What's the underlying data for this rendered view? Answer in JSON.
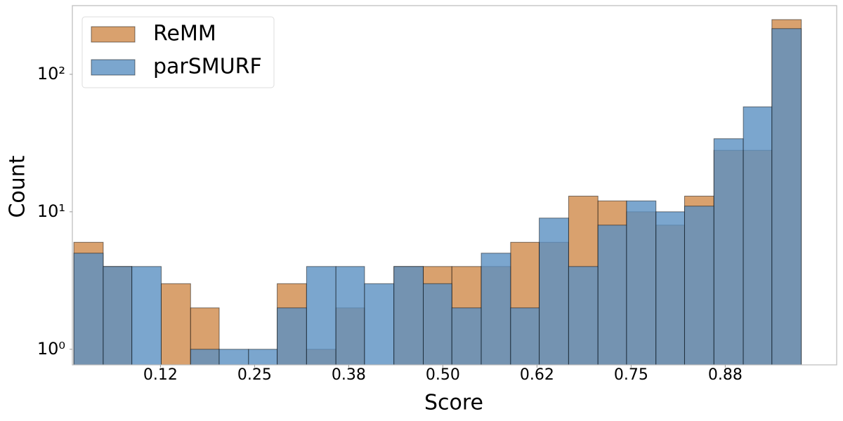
{
  "chart_data": {
    "type": "histogram",
    "x_label": "Score",
    "y_label": "Count",
    "bins": [
      0.01,
      0.049,
      0.087,
      0.126,
      0.165,
      0.203,
      0.242,
      0.28,
      0.319,
      0.358,
      0.396,
      0.435,
      0.474,
      0.512,
      0.551,
      0.59,
      0.628,
      0.667,
      0.706,
      0.744,
      0.783,
      0.821,
      0.86,
      0.899,
      0.937,
      0.976
    ],
    "series": [
      {
        "name": "ReMM",
        "color": "#d08a4a",
        "values": [
          6,
          4,
          0,
          3,
          2,
          0,
          0,
          3,
          1,
          2,
          0,
          4,
          4,
          4,
          4,
          6,
          6,
          13,
          12,
          10,
          8,
          13,
          28,
          28,
          250
        ]
      },
      {
        "name": "parSMURF",
        "color": "#5a90c2",
        "values": [
          5,
          4,
          4,
          0,
          1,
          1,
          1,
          2,
          4,
          4,
          3,
          4,
          3,
          2,
          5,
          2,
          9,
          4,
          8,
          12,
          10,
          11,
          34,
          58,
          215
        ]
      }
    ],
    "xlim": [
      0.008,
      1.023
    ],
    "xticks": [
      {
        "value": 0.125,
        "label": "0.12"
      },
      {
        "value": 0.25,
        "label": "0.25"
      },
      {
        "value": 0.375,
        "label": "0.38"
      },
      {
        "value": 0.5,
        "label": "0.50"
      },
      {
        "value": 0.625,
        "label": "0.62"
      },
      {
        "value": 0.75,
        "label": "0.75"
      },
      {
        "value": 0.875,
        "label": "0.88"
      }
    ],
    "ylim": [
      0.77,
      316
    ],
    "yticks": [
      {
        "value": 1,
        "label": "10⁰"
      },
      {
        "value": 10,
        "label": "10¹"
      },
      {
        "value": 100,
        "label": "10²"
      }
    ],
    "y_log": true,
    "legend": "upper left"
  }
}
